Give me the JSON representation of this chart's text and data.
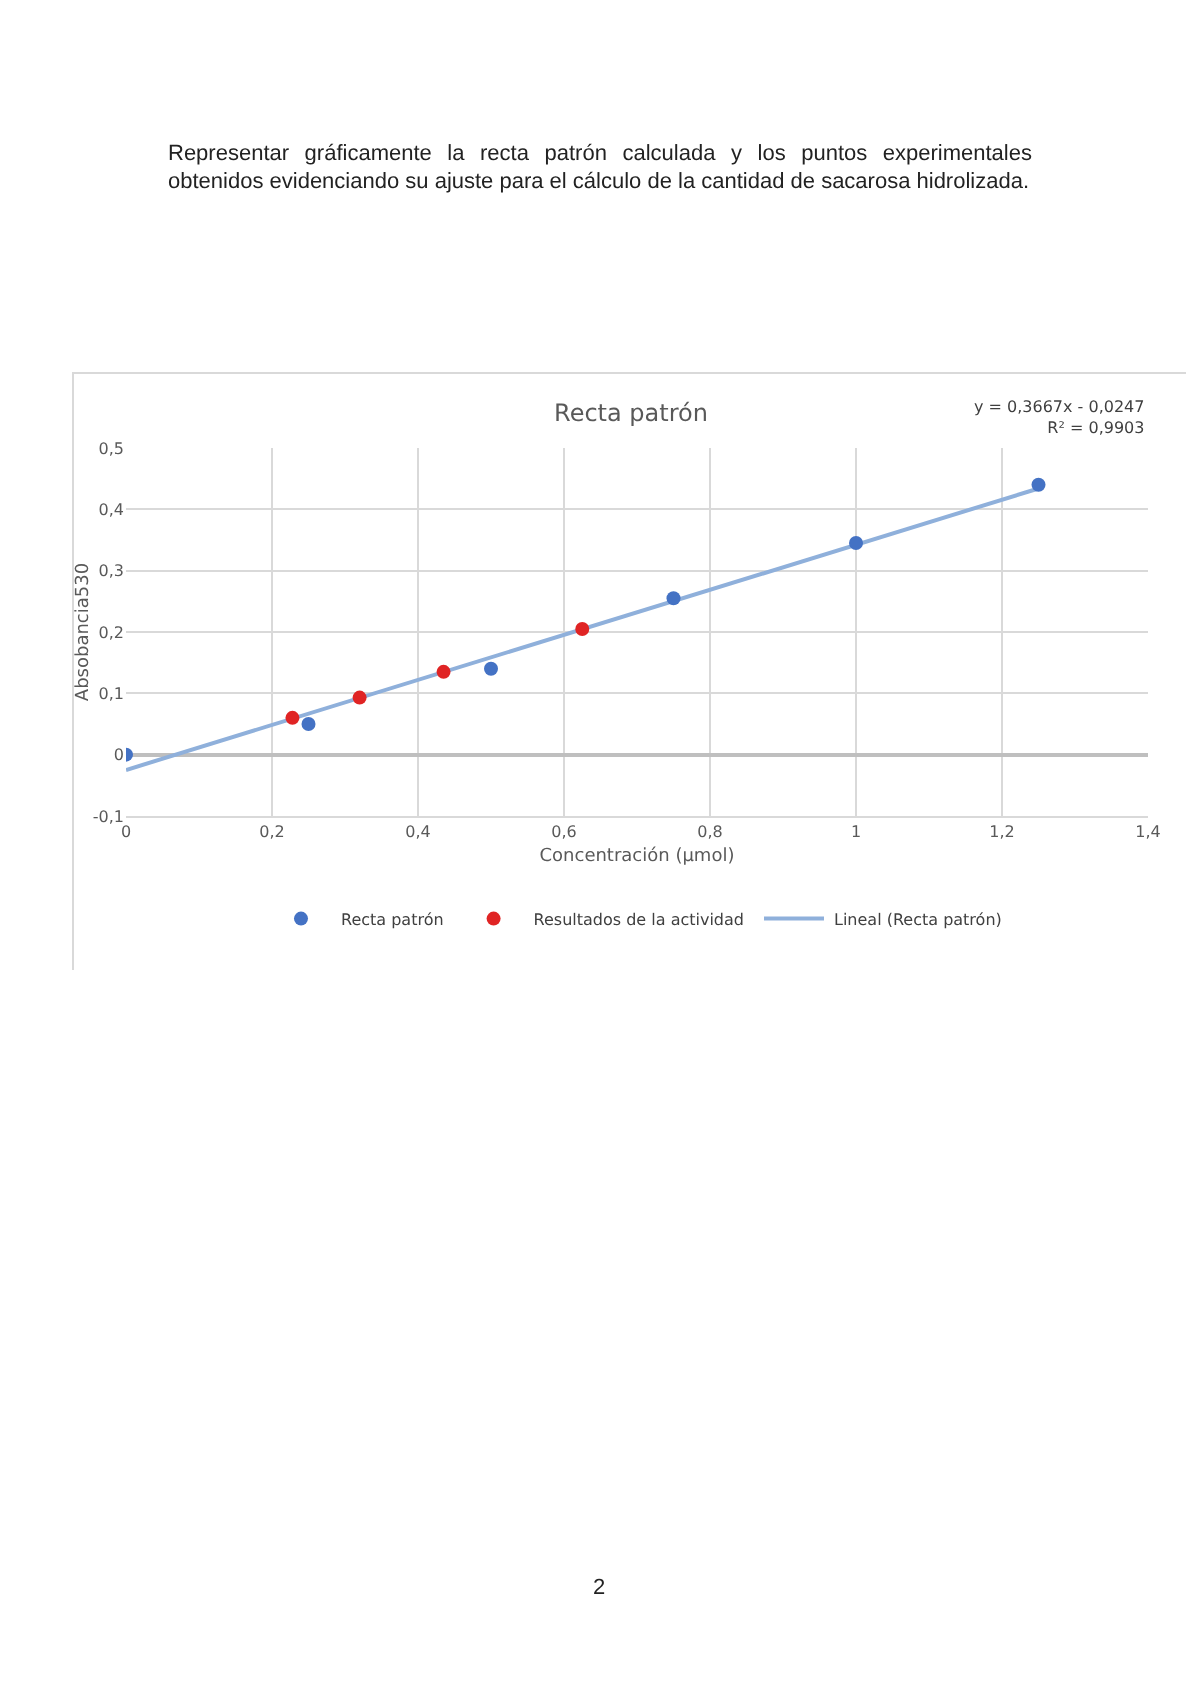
{
  "chart_data": {
    "type": "scatter",
    "title": "Recta patrón",
    "xlabel": "Concentración (µmol)",
    "ylabel": "Absobancia530",
    "annotations": [
      "Representar gráficamente la recta patrón calculada y los puntos experimentales obtenidos evidenciando su ajuste para el cálculo de la cantidad de sacarosa hidrolizada.",
      "y = 0,3667x - 0,0247\nR² = 0,9903",
      "2"
    ],
    "series": [
      {
        "name": "Recta patrón",
        "color": "#4472c4",
        "x": [
          0,
          0.25,
          0.5,
          0.75,
          1,
          1.25
        ],
        "values": [
          0,
          0.05,
          0.14,
          0.255,
          0.345,
          0.44
        ]
      },
      {
        "name": "Resultados de la actividad",
        "color": "#e02424",
        "x": [
          0.228,
          0.32,
          0.435,
          0.625
        ],
        "values": [
          0.06,
          0.093,
          0.135,
          0.205
        ]
      },
      {
        "name": "Lineal (Recta patrón)",
        "type": "line",
        "marker": "none",
        "color": "#8fb0db",
        "x": [
          0,
          1.25
        ],
        "values": [
          -0.025,
          0.434
        ]
      }
    ],
    "xlim": [
      0,
      1.4
    ],
    "xticks": [
      0,
      {
        "value": 0.2,
        "label": "0,2"
      },
      {
        "value": 0.4,
        "label": "0,4"
      },
      {
        "value": 0.6,
        "label": "0,6"
      },
      {
        "value": 0.8,
        "label": "0,8"
      },
      1,
      {
        "value": 1.2,
        "label": "1,2"
      },
      {
        "value": 1.4,
        "label": "1,4"
      }
    ],
    "ylim": [
      -0.1,
      0.5
    ],
    "yticks": [
      {
        "value": -0.1,
        "label": "-0,1"
      },
      0,
      {
        "value": 0.1,
        "label": "0,1"
      },
      {
        "value": 0.2,
        "label": "0,2"
      },
      {
        "value": 0.3,
        "label": "0,3"
      },
      {
        "value": 0.4,
        "label": "0,4"
      },
      {
        "value": 0.5,
        "label": "0,5"
      }
    ],
    "grid": true,
    "legend": "bottom",
    "marker": "circle"
  }
}
